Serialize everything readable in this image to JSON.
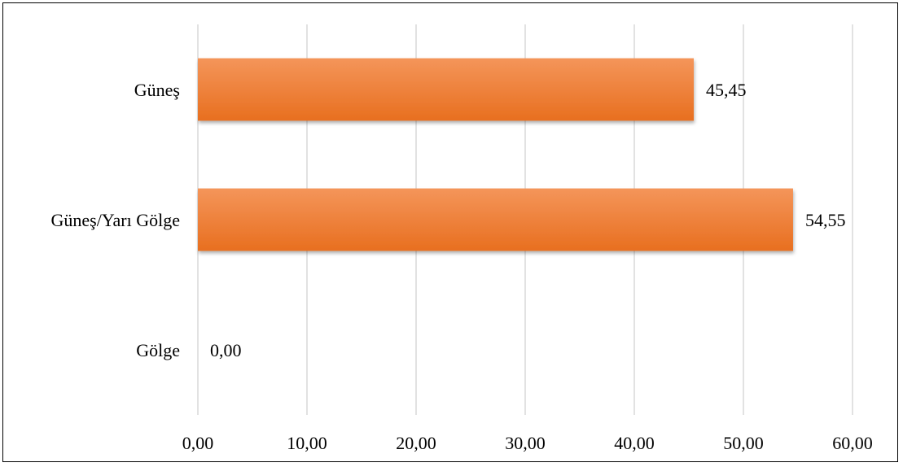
{
  "chart_data": {
    "type": "bar",
    "orientation": "horizontal",
    "categories": [
      "Güneş",
      "Güneş/Yarı Gölge",
      "Gölge"
    ],
    "values": [
      45.45,
      54.55,
      0.0
    ],
    "value_labels": [
      "45,45",
      "54,55",
      "0,00"
    ],
    "xlim": [
      0,
      60
    ],
    "x_ticks": [
      0,
      10,
      20,
      30,
      40,
      50,
      60
    ],
    "x_tick_labels": [
      "0,00",
      "10,00",
      "20,00",
      "30,00",
      "40,00",
      "50,00",
      "60,00"
    ],
    "grid": "vertical",
    "legend": "none",
    "bar_color_light": "#f4955a",
    "bar_color_dark": "#e86f1f"
  }
}
